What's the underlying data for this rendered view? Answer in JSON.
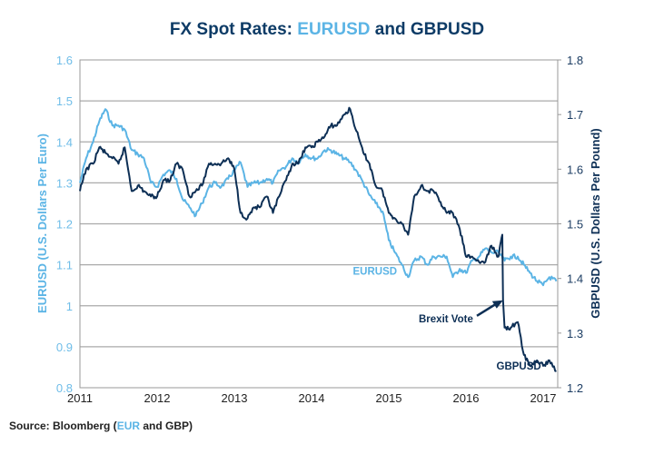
{
  "title": {
    "prefix": "FX Spot Rates: ",
    "highlight": "EURUSD",
    "suffix": " and GBPUSD"
  },
  "source": {
    "prefix": "Source: Bloomberg (",
    "highlight": "EUR",
    "suffix": " and GBP)"
  },
  "colors": {
    "eurusd": "#5bb4e5",
    "gbpusd": "#0d2f55",
    "grid": "#aaaaaa",
    "title": "#0d3b66"
  },
  "chart_data": {
    "type": "line",
    "title": "FX Spot Rates: EURUSD and GBPUSD",
    "xlabel": "",
    "ylabel_left": "EURUSD (U.S. Dollars Per Euro)",
    "ylabel_right": "GBPUSD (U.S. Dollars Per Pound)",
    "xlim": [
      2011.0,
      2017.2
    ],
    "ylim_left": [
      0.8,
      1.6
    ],
    "ylim_right": [
      1.2,
      1.8
    ],
    "x_ticks": [
      "2011",
      "2012",
      "2013",
      "2014",
      "2015",
      "2016",
      "2017"
    ],
    "y_ticks_left": [
      "1.6",
      "1.5",
      "1.4",
      "1.3",
      "1.2",
      "1.1",
      "1",
      "0.9",
      "0.8"
    ],
    "y_ticks_right": [
      "1.8",
      "1.7",
      "1.6",
      "1.5",
      "1.4",
      "1.3",
      "1.2"
    ],
    "grid": true,
    "series": [
      {
        "name": "EURUSD",
        "axis": "left",
        "x": [
          2011.0,
          2011.08,
          2011.17,
          2011.25,
          2011.33,
          2011.42,
          2011.5,
          2011.58,
          2011.67,
          2011.75,
          2011.83,
          2011.92,
          2012.0,
          2012.08,
          2012.17,
          2012.25,
          2012.33,
          2012.42,
          2012.5,
          2012.58,
          2012.67,
          2012.75,
          2012.83,
          2012.92,
          2013.0,
          2013.08,
          2013.17,
          2013.25,
          2013.33,
          2013.42,
          2013.5,
          2013.58,
          2013.67,
          2013.75,
          2013.83,
          2013.92,
          2014.0,
          2014.08,
          2014.17,
          2014.25,
          2014.33,
          2014.42,
          2014.5,
          2014.58,
          2014.67,
          2014.75,
          2014.83,
          2014.92,
          2015.0,
          2015.08,
          2015.17,
          2015.25,
          2015.33,
          2015.42,
          2015.5,
          2015.58,
          2015.67,
          2015.75,
          2015.83,
          2015.92,
          2016.0,
          2016.08,
          2016.17,
          2016.25,
          2016.33,
          2016.42,
          2016.5,
          2016.58,
          2016.67,
          2016.75,
          2016.83,
          2016.92,
          2017.0,
          2017.08,
          2017.17
        ],
        "values": [
          1.3,
          1.36,
          1.4,
          1.45,
          1.48,
          1.44,
          1.44,
          1.43,
          1.38,
          1.37,
          1.36,
          1.3,
          1.29,
          1.32,
          1.33,
          1.31,
          1.26,
          1.24,
          1.22,
          1.25,
          1.29,
          1.3,
          1.29,
          1.31,
          1.33,
          1.35,
          1.29,
          1.3,
          1.3,
          1.31,
          1.3,
          1.33,
          1.34,
          1.36,
          1.35,
          1.37,
          1.36,
          1.36,
          1.38,
          1.38,
          1.37,
          1.36,
          1.35,
          1.33,
          1.3,
          1.27,
          1.25,
          1.23,
          1.16,
          1.13,
          1.1,
          1.07,
          1.11,
          1.12,
          1.1,
          1.12,
          1.12,
          1.12,
          1.07,
          1.09,
          1.08,
          1.11,
          1.12,
          1.14,
          1.13,
          1.13,
          1.11,
          1.12,
          1.12,
          1.1,
          1.08,
          1.06,
          1.05,
          1.07,
          1.06
        ]
      },
      {
        "name": "GBPUSD",
        "axis": "right",
        "x": [
          2011.0,
          2011.08,
          2011.17,
          2011.25,
          2011.33,
          2011.42,
          2011.5,
          2011.58,
          2011.67,
          2011.75,
          2011.83,
          2011.92,
          2012.0,
          2012.08,
          2012.17,
          2012.25,
          2012.33,
          2012.42,
          2012.5,
          2012.58,
          2012.67,
          2012.75,
          2012.83,
          2012.92,
          2013.0,
          2013.08,
          2013.17,
          2013.25,
          2013.33,
          2013.42,
          2013.5,
          2013.58,
          2013.67,
          2013.75,
          2013.83,
          2013.92,
          2014.0,
          2014.08,
          2014.17,
          2014.25,
          2014.33,
          2014.42,
          2014.5,
          2014.58,
          2014.67,
          2014.75,
          2014.83,
          2014.92,
          2015.0,
          2015.08,
          2015.17,
          2015.25,
          2015.33,
          2015.42,
          2015.5,
          2015.58,
          2015.67,
          2015.75,
          2015.83,
          2015.92,
          2016.0,
          2016.08,
          2016.17,
          2016.25,
          2016.33,
          2016.42,
          2016.47,
          2016.48,
          2016.5,
          2016.58,
          2016.67,
          2016.75,
          2016.83,
          2016.92,
          2017.0,
          2017.08,
          2017.17
        ],
        "values": [
          1.56,
          1.6,
          1.61,
          1.64,
          1.63,
          1.62,
          1.61,
          1.64,
          1.56,
          1.57,
          1.56,
          1.55,
          1.55,
          1.58,
          1.58,
          1.61,
          1.6,
          1.55,
          1.56,
          1.57,
          1.61,
          1.61,
          1.61,
          1.62,
          1.6,
          1.52,
          1.51,
          1.53,
          1.53,
          1.55,
          1.52,
          1.55,
          1.58,
          1.61,
          1.61,
          1.64,
          1.64,
          1.65,
          1.66,
          1.68,
          1.68,
          1.7,
          1.71,
          1.67,
          1.63,
          1.61,
          1.57,
          1.56,
          1.52,
          1.51,
          1.5,
          1.48,
          1.55,
          1.57,
          1.56,
          1.56,
          1.54,
          1.52,
          1.52,
          1.49,
          1.44,
          1.44,
          1.43,
          1.43,
          1.46,
          1.44,
          1.48,
          1.36,
          1.31,
          1.31,
          1.32,
          1.26,
          1.24,
          1.25,
          1.24,
          1.25,
          1.23
        ]
      }
    ],
    "annotations": [
      {
        "text": "EURUSD",
        "series": "EURUSD",
        "x": 2015.1,
        "y_left": 1.085
      },
      {
        "text": "Brexit Vote",
        "x": 2016.0,
        "y_right": 1.33,
        "arrow_to": [
          2016.48,
          1.36
        ]
      },
      {
        "text": "GBPUSD",
        "series": "GBPUSD",
        "x": 2016.3,
        "y_right": 1.24
      }
    ]
  }
}
